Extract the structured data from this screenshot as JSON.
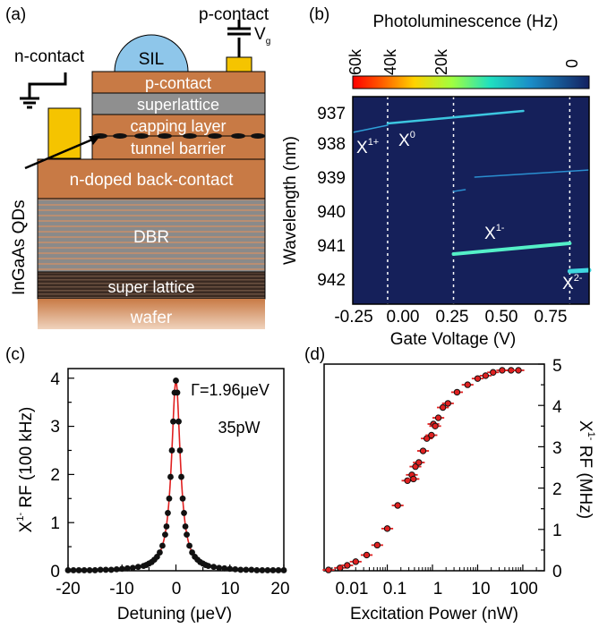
{
  "panels": {
    "a": {
      "label": "(a)",
      "layers": [
        "p-contact",
        "superlattice",
        "capping layer",
        "tunnel barrier",
        "n-doped back-contact",
        "DBR",
        "super lattice",
        "wafer"
      ],
      "sil": "SIL",
      "n_contact": "n-contact",
      "p_contact": "p-contact",
      "vg_main": "V",
      "vg_sub": "g",
      "qd_label": "InGaAs QDs",
      "colors": {
        "copper": "#c87a45",
        "gold": "#f5c400",
        "sil": "#8ec6ea",
        "dbr": "#8f8f8f",
        "super_lattice": "#3a2a22"
      }
    },
    "b": {
      "label": "(b)",
      "colorbar_title": "Photoluminescence (Hz)",
      "colorbar_ticks": [
        "60k",
        "40k",
        "20k",
        "0"
      ],
      "ylabel": "Wavelength (nm)",
      "xlabel": "Gate Voltage (V)",
      "yticks": [
        "937",
        "938",
        "939",
        "940",
        "941",
        "942"
      ],
      "xticks": [
        "-0.25",
        "0.00",
        "0.25",
        "0.50",
        "0.75"
      ],
      "annot": {
        "x1p": "X",
        "x1p_sup": "1+",
        "x0": "X",
        "x0_sup": "0",
        "x1m": "X",
        "x1m_sup": "1-",
        "x2m": "X",
        "x2m_sup": "2-"
      },
      "background": "#15205a"
    },
    "c": {
      "label": "(c)",
      "ylabel_main": "X",
      "ylabel_sup": "1-",
      "ylabel_rest": " RF (100 kHz)",
      "xlabel": "Detuning (μeV)",
      "xticks": [
        "-20",
        "-10",
        "0",
        "10",
        "20"
      ],
      "yticks": [
        "0",
        "1",
        "2",
        "3",
        "4"
      ],
      "annot_gamma": "Γ=1.96μeV",
      "annot_power": "35pW"
    },
    "d": {
      "label": "(d)",
      "ylabel_main": "X",
      "ylabel_sup": "1-",
      "ylabel_rest": " RF (MHz)",
      "xlabel": "Excitation Power (nW)",
      "xticks": [
        "0.01",
        "0.1",
        "1",
        "10",
        "100"
      ],
      "yticks": [
        "0",
        "1",
        "2",
        "3",
        "4",
        "5"
      ]
    }
  },
  "chart_data": [
    {
      "panel": "b",
      "type": "heatmap",
      "xlabel": "Gate Voltage (V)",
      "ylabel": "Wavelength (nm)",
      "xlim": [
        -0.33,
        0.89
      ],
      "ylim": [
        936.7,
        942.5
      ],
      "colorbar": {
        "title": "Photoluminescence (Hz)",
        "range": [
          0,
          65000
        ],
        "ticks": [
          "60k",
          "40k",
          "20k",
          "0"
        ]
      },
      "transitions_V": [
        -0.15,
        0.19,
        0.79
      ],
      "lines": [
        {
          "name": "X1+",
          "x": [
            -0.33,
            -0.15
          ],
          "y": [
            937.7,
            937.5
          ]
        },
        {
          "name": "X0",
          "x": [
            -0.15,
            0.55
          ],
          "y": [
            937.45,
            937.1
          ]
        },
        {
          "name": "X0-high",
          "x": [
            0.3,
            0.89
          ],
          "y": [
            938.95,
            938.75
          ]
        },
        {
          "name": "X0-low",
          "x": [
            0.19,
            0.25
          ],
          "y": [
            939.35,
            939.3
          ]
        },
        {
          "name": "X1-",
          "x": [
            0.19,
            0.79
          ],
          "y": [
            941.1,
            940.8
          ]
        },
        {
          "name": "X2-",
          "x": [
            0.79,
            0.89
          ],
          "y": [
            941.58,
            941.55
          ]
        }
      ]
    },
    {
      "panel": "c",
      "type": "scatter",
      "xlabel": "Detuning (μeV)",
      "ylabel": "X1- RF (100 kHz)",
      "xlim": [
        -20,
        20
      ],
      "ylim": [
        0,
        4.2
      ],
      "fit": {
        "type": "lorentzian",
        "peak": 3.95,
        "fwhm": 1.96,
        "center": 0
      },
      "x": [
        -20,
        -19,
        -18,
        -17,
        -16,
        -15,
        -14,
        -13,
        -12,
        -11,
        -10,
        -9,
        -8,
        -7,
        -6,
        -5.5,
        -5,
        -4.5,
        -4,
        -3.5,
        -3,
        -2.5,
        -2,
        -1.75,
        -1.5,
        -1.25,
        -1,
        -0.75,
        -0.5,
        -0.25,
        0,
        0.25,
        0.5,
        0.75,
        1,
        1.25,
        1.5,
        1.75,
        2,
        2.5,
        3,
        3.5,
        4,
        4.5,
        5,
        5.5,
        6,
        7,
        8,
        9,
        10,
        11,
        12,
        13,
        14,
        15,
        16,
        17,
        18,
        19,
        20
      ],
      "y": [
        0.01,
        0.01,
        0.01,
        0.01,
        0.01,
        0.01,
        0.02,
        0.02,
        0.02,
        0.03,
        0.04,
        0.05,
        0.06,
        0.08,
        0.1,
        0.12,
        0.15,
        0.18,
        0.23,
        0.29,
        0.38,
        0.52,
        0.75,
        0.92,
        1.2,
        1.5,
        1.95,
        2.5,
        3.1,
        3.7,
        3.95,
        3.7,
        3.1,
        2.5,
        1.95,
        1.5,
        1.2,
        0.92,
        0.75,
        0.52,
        0.38,
        0.29,
        0.23,
        0.18,
        0.15,
        0.12,
        0.1,
        0.08,
        0.06,
        0.05,
        0.04,
        0.03,
        0.02,
        0.02,
        0.02,
        0.01,
        0.01,
        0.01,
        0.01,
        0.01,
        0.01
      ]
    },
    {
      "panel": "d",
      "type": "scatter",
      "xlabel": "Excitation Power (nW)",
      "ylabel": "X1- RF (MHz)",
      "xscale": "log",
      "xlim": [
        0.004,
        300
      ],
      "ylim": [
        0,
        5
      ],
      "x": [
        0.005,
        0.009,
        0.013,
        0.02,
        0.035,
        0.06,
        0.1,
        0.17,
        0.28,
        0.35,
        0.38,
        0.42,
        0.5,
        0.62,
        0.75,
        0.95,
        1.05,
        1.15,
        1.35,
        1.7,
        2.2,
        3.5,
        6,
        10,
        15,
        22,
        35,
        55,
        80
      ],
      "y": [
        0.02,
        0.07,
        0.13,
        0.22,
        0.38,
        0.62,
        1.02,
        1.58,
        2.18,
        2.32,
        2.22,
        2.52,
        2.62,
        2.9,
        3.2,
        3.28,
        3.55,
        3.5,
        3.7,
        3.95,
        4.05,
        4.32,
        4.5,
        4.65,
        4.72,
        4.8,
        4.85,
        4.85,
        4.85
      ]
    }
  ]
}
